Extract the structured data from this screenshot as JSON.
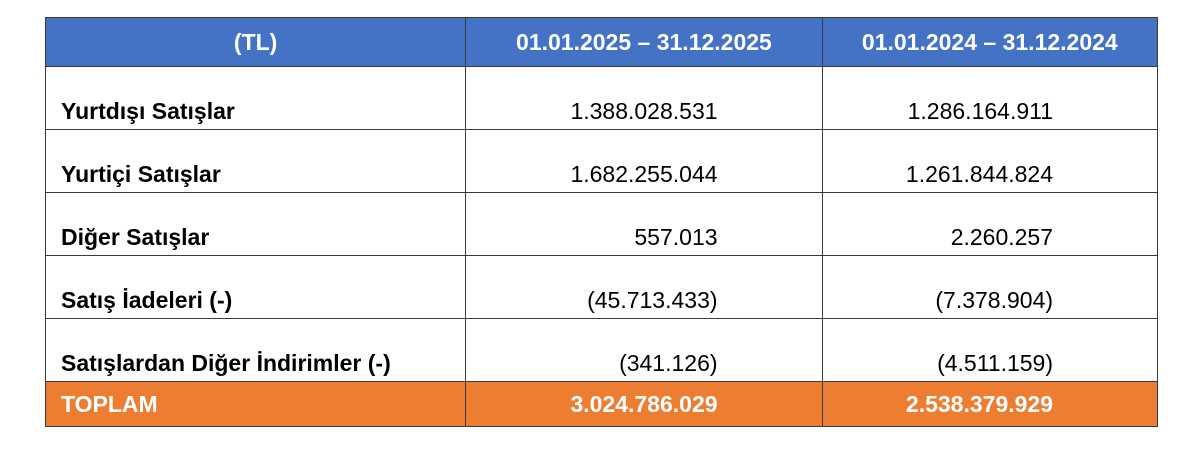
{
  "header": {
    "col1": "(TL)",
    "col2": "01.01.2025 – 31.12.2025",
    "col3": "01.01.2024 – 31.12.2024"
  },
  "rows": [
    {
      "label": "Yurtdışı Satışlar",
      "v2025": "1.388.028.531",
      "v2024": "1.286.164.911"
    },
    {
      "label": "Yurtiçi Satışlar",
      "v2025": "1.682.255.044",
      "v2024": "1.261.844.824"
    },
    {
      "label": "Diğer Satışlar",
      "v2025": "557.013",
      "v2024": "2.260.257"
    },
    {
      "label": "Satış İadeleri (-)",
      "v2025": "(45.713.433)",
      "v2024": "(7.378.904)"
    },
    {
      "label": "Satışlardan Diğer İndirimler (-)",
      "v2025": "(341.126)",
      "v2024": "(4.511.159)"
    }
  ],
  "total": {
    "label": "TOPLAM",
    "v2025": "3.024.786.029",
    "v2024": "2.538.379.929"
  },
  "colors": {
    "header_bg": "#4472c4",
    "total_bg": "#ed7d31",
    "header_text": "#ffffff"
  }
}
